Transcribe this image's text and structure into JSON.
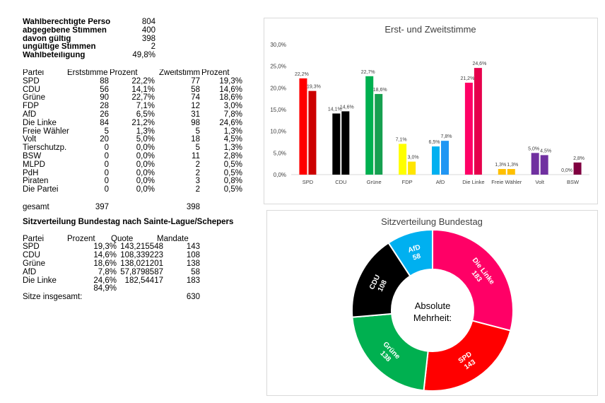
{
  "summary": [
    {
      "label": "Wahlberechtigte Personen",
      "value": "804"
    },
    {
      "label": "abgegebene Stimmen",
      "value": "400"
    },
    {
      "label": "davon gültig",
      "value": "398"
    },
    {
      "label": "ungültige Stimmen",
      "value": "2"
    },
    {
      "label": "Wahlbeteiligung",
      "value": "49,8%"
    }
  ],
  "votes_table": {
    "headers": [
      "Partei",
      "Erststimme",
      "Prozent",
      "Zweitstimme",
      "Prozent"
    ],
    "rows": [
      [
        "SPD",
        "88",
        "22,2%",
        "77",
        "19,3%"
      ],
      [
        "CDU",
        "56",
        "14,1%",
        "58",
        "14,6%"
      ],
      [
        "Grüne",
        "90",
        "22,7%",
        "74",
        "18,6%"
      ],
      [
        "FDP",
        "28",
        "7,1%",
        "12",
        "3,0%"
      ],
      [
        "AfD",
        "26",
        "6,5%",
        "31",
        "7,8%"
      ],
      [
        "Die Linke",
        "84",
        "21,2%",
        "98",
        "24,6%"
      ],
      [
        "Freie Wähler",
        "5",
        "1,3%",
        "5",
        "1,3%"
      ],
      [
        "Volt",
        "20",
        "5,0%",
        "18",
        "4,5%"
      ],
      [
        "Tierschutzp.",
        "0",
        "0,0%",
        "5",
        "1,3%"
      ],
      [
        "BSW",
        "0",
        "0,0%",
        "11",
        "2,8%"
      ],
      [
        "MLPD",
        "0",
        "0,0%",
        "2",
        "0,5%"
      ],
      [
        "PdH",
        "0",
        "0,0%",
        "2",
        "0,5%"
      ],
      [
        "Piraten",
        "0",
        "0,0%",
        "3",
        "0,8%"
      ],
      [
        "Die Partei",
        "0",
        "0,0%",
        "2",
        "0,5%"
      ]
    ],
    "total_label": "gesamt",
    "total_erst": "397",
    "total_zweit": "398"
  },
  "seats_table": {
    "title": "Sitzverteilung Bundestag nach Sainte-Lague/Schepers",
    "headers": [
      "Partei",
      "Prozent",
      "Quote",
      "Mandate"
    ],
    "rows": [
      [
        "SPD",
        "19,3%",
        "143,215548",
        "143"
      ],
      [
        "CDU",
        "14,6%",
        "108,339223",
        "108"
      ],
      [
        "Grüne",
        "18,6%",
        "138,021201",
        "138"
      ],
      [
        "AfD",
        "7,8%",
        "57,8798587",
        "58"
      ],
      [
        "Die Linke",
        "24,6%",
        "182,54417",
        "183"
      ]
    ],
    "sum_percent": "84,9%",
    "total_label": "Sitze insgesamt:",
    "total_value": "630"
  },
  "chart_data": [
    {
      "type": "bar",
      "title": "Erst- und Zweitstimme",
      "categories": [
        "SPD",
        "CDU",
        "Grüne",
        "FDP",
        "AfD",
        "Die Linke",
        "Freie Wähler",
        "Volt",
        "BSW"
      ],
      "series": [
        {
          "values": [
            22.2,
            14.1,
            22.7,
            7.1,
            6.5,
            21.2,
            1.3,
            5.0,
            0.0
          ],
          "labels": [
            "22,2%",
            "14,1%",
            "22,7%",
            "7,1%",
            "6,5%",
            "21,2%",
            "1,3%",
            "5,0%",
            "0,0%"
          ]
        },
        {
          "values": [
            19.3,
            14.6,
            18.6,
            3.0,
            7.8,
            24.6,
            1.3,
            4.5,
            2.8
          ],
          "labels": [
            "19,3%",
            "14,6%",
            "18,6%",
            "3,0%",
            "7,8%",
            "24,6%",
            "1,3%",
            "4,5%",
            "2,8%"
          ]
        }
      ],
      "colors_first": [
        "#ff0000",
        "#000000",
        "#00b050",
        "#ffff00",
        "#00b0f0",
        "#ff0066",
        "#ffc000",
        "#7030a0",
        "#c00080"
      ],
      "colors_second": [
        "#cc0000",
        "#000000",
        "#16a050",
        "#ffe500",
        "#2196f3",
        "#e6004c",
        "#ffc000",
        "#7030a0",
        "#800040"
      ],
      "ylim": [
        0,
        30
      ],
      "yticks": [
        "0,0%",
        "5,0%",
        "10,0%",
        "15,0%",
        "20,0%",
        "25,0%",
        "30,0%"
      ],
      "grid": false,
      "legend": "none"
    },
    {
      "type": "pie",
      "title": "Sitzverteilung Bundestag",
      "center_text": [
        "Absolute",
        "Mehrheit:"
      ],
      "slices": [
        {
          "name": "Die Linke",
          "value": 183,
          "color": "#ff0066"
        },
        {
          "name": "SPD",
          "value": 143,
          "color": "#ff0000"
        },
        {
          "name": "Grüne",
          "value": 138,
          "color": "#00b050"
        },
        {
          "name": "CDU",
          "value": 108,
          "color": "#000000"
        },
        {
          "name": "AfD",
          "value": 58,
          "color": "#00b0f0"
        }
      ]
    }
  ]
}
